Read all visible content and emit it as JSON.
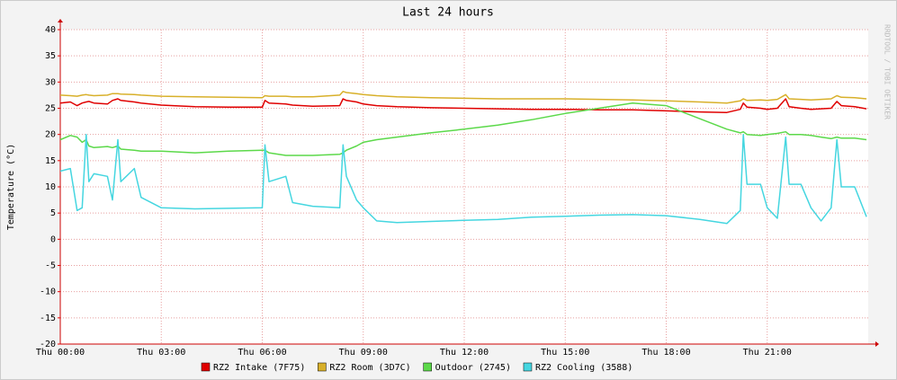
{
  "chart_data": {
    "type": "line",
    "title": "Last 24 hours",
    "y_label": "Temperature (°C)",
    "watermark": "RRDTOOL / TOBI OETIKER",
    "x": [
      0,
      0.3,
      0.5,
      0.65,
      0.77,
      0.85,
      1.0,
      1.4,
      1.55,
      1.71,
      1.8,
      2.2,
      2.4,
      3,
      4,
      5,
      6,
      6.08,
      6.2,
      6.7,
      6.9,
      7.5,
      8.3,
      8.4,
      8.5,
      8.8,
      9.0,
      9.4,
      10,
      11,
      12,
      13,
      14,
      15,
      16,
      17,
      18,
      19,
      19.8,
      20.2,
      20.29,
      20.4,
      20.8,
      21.0,
      21.3,
      21.55,
      21.65,
      22.0,
      22.3,
      22.6,
      22.9,
      23.07,
      23.2,
      23.6,
      23.95
    ],
    "xlim": [
      0,
      24
    ],
    "xticks": [
      {
        "value": 0,
        "label": "Thu 00:00"
      },
      {
        "value": 3,
        "label": "Thu 03:00"
      },
      {
        "value": 6,
        "label": "Thu 06:00"
      },
      {
        "value": 9,
        "label": "Thu 09:00"
      },
      {
        "value": 12,
        "label": "Thu 12:00"
      },
      {
        "value": 15,
        "label": "Thu 15:00"
      },
      {
        "value": 18,
        "label": "Thu 18:00"
      },
      {
        "value": 21,
        "label": "Thu 21:00"
      }
    ],
    "ylim": [
      -20,
      40
    ],
    "yticks": [
      -20,
      -15,
      -10,
      -5,
      0,
      5,
      10,
      15,
      20,
      25,
      30,
      35,
      40
    ],
    "grid": true,
    "series": [
      {
        "name": "RZ2 Intake (7F75)",
        "color": "#e00000",
        "values": [
          26,
          26.2,
          25.5,
          26,
          26.2,
          26.3,
          26,
          25.8,
          26.5,
          26.8,
          26.5,
          26.2,
          26,
          25.6,
          25.3,
          25.2,
          25.2,
          26.5,
          26,
          25.8,
          25.6,
          25.4,
          25.5,
          26.8,
          26.5,
          26.2,
          25.8,
          25.5,
          25.3,
          25.1,
          25,
          24.9,
          24.8,
          24.8,
          24.7,
          24.7,
          24.5,
          24.3,
          24.2,
          24.8,
          26,
          25.2,
          25,
          24.8,
          25,
          26.8,
          25.3,
          25,
          24.8,
          24.9,
          25,
          26.3,
          25.5,
          25.3,
          24.9
        ]
      },
      {
        "name": "RZ2 Room (3D7C)",
        "color": "#d8b02a",
        "values": [
          27.5,
          27.4,
          27.3,
          27.5,
          27.6,
          27.5,
          27.4,
          27.5,
          27.8,
          27.8,
          27.7,
          27.6,
          27.5,
          27.3,
          27.2,
          27.1,
          27,
          27.4,
          27.3,
          27.3,
          27.2,
          27.2,
          27.5,
          28.2,
          28,
          27.8,
          27.6,
          27.4,
          27.2,
          27,
          26.9,
          26.8,
          26.8,
          26.8,
          26.7,
          26.6,
          26.4,
          26.2,
          26,
          26.4,
          26.8,
          26.5,
          26.6,
          26.5,
          26.7,
          27.6,
          26.8,
          26.7,
          26.6,
          26.7,
          26.8,
          27.4,
          27.1,
          27,
          26.8
        ]
      },
      {
        "name": "Outdoor (2745)",
        "color": "#5cd94a",
        "values": [
          19,
          19.8,
          19.5,
          18.5,
          19,
          17.8,
          17.5,
          17.7,
          17.5,
          17.8,
          17.2,
          17,
          16.8,
          16.8,
          16.5,
          16.8,
          17,
          17,
          16.5,
          16,
          16,
          16,
          16.2,
          16.5,
          17,
          17.8,
          18.5,
          19,
          19.5,
          20.3,
          21,
          21.8,
          22.8,
          24,
          25,
          26,
          25.5,
          23,
          21,
          20.3,
          20.5,
          20,
          19.8,
          20,
          20.2,
          20.5,
          20,
          20,
          19.8,
          19.5,
          19.2,
          19.5,
          19.3,
          19.3,
          19
        ]
      },
      {
        "name": "RZ2 Cooling (3588)",
        "color": "#45d6e0",
        "values": [
          13,
          13.5,
          5.5,
          6,
          20,
          11,
          12.5,
          12,
          7.5,
          19,
          11,
          13.5,
          8,
          6,
          5.8,
          5.9,
          6,
          18,
          11,
          12,
          7,
          6.3,
          6,
          18,
          12,
          7.5,
          6,
          3.5,
          3.2,
          3.4,
          3.6,
          3.8,
          4.2,
          4.4,
          4.6,
          4.7,
          4.5,
          3.8,
          3,
          5.5,
          20,
          10.5,
          10.5,
          6,
          4,
          19.5,
          10.5,
          10.5,
          6,
          3.5,
          6,
          19,
          10,
          10,
          4.3
        ]
      }
    ]
  }
}
